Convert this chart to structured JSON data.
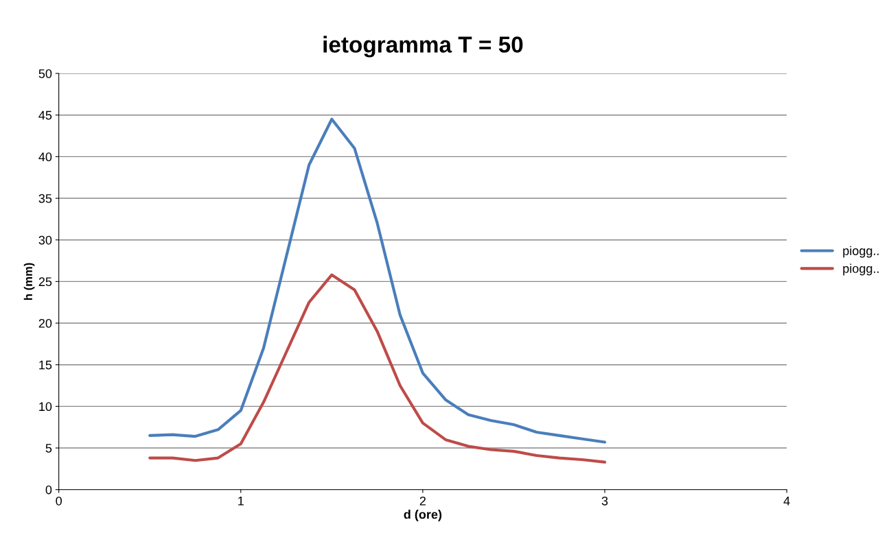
{
  "chart_data": {
    "type": "line",
    "title": "ietogramma T = 50",
    "xlabel": "d (ore)",
    "ylabel": "h (mm)",
    "x": [
      0.5,
      0.625,
      0.75,
      0.875,
      1.0,
      1.125,
      1.25,
      1.375,
      1.5,
      1.625,
      1.75,
      1.875,
      2.0,
      2.125,
      2.25,
      2.375,
      2.5,
      2.625,
      2.75,
      2.875,
      3.0
    ],
    "series": [
      {
        "name": "piogg..",
        "color": "#4a7ebb",
        "values": [
          6.5,
          6.6,
          6.4,
          7.2,
          9.5,
          17,
          28,
          39,
          44.5,
          41,
          32,
          21,
          14,
          10.8,
          9,
          8.3,
          7.8,
          6.9,
          6.5,
          6.1,
          5.7
        ]
      },
      {
        "name": "piogg..",
        "color": "#be4b48",
        "values": [
          3.8,
          3.8,
          3.5,
          3.8,
          5.5,
          10.5,
          16.5,
          22.5,
          25.8,
          24,
          19,
          12.5,
          8,
          6,
          5.2,
          4.8,
          4.6,
          4.1,
          3.8,
          3.6,
          3.3
        ]
      }
    ],
    "xlim": [
      0,
      4
    ],
    "xticks": [
      0,
      1,
      2,
      3,
      4
    ],
    "ylim": [
      0,
      50
    ],
    "yticks": [
      0,
      5,
      10,
      15,
      20,
      25,
      30,
      35,
      40,
      45,
      50
    ],
    "grid": "y",
    "legend": "right",
    "marker": "none",
    "line_style": "solid"
  }
}
